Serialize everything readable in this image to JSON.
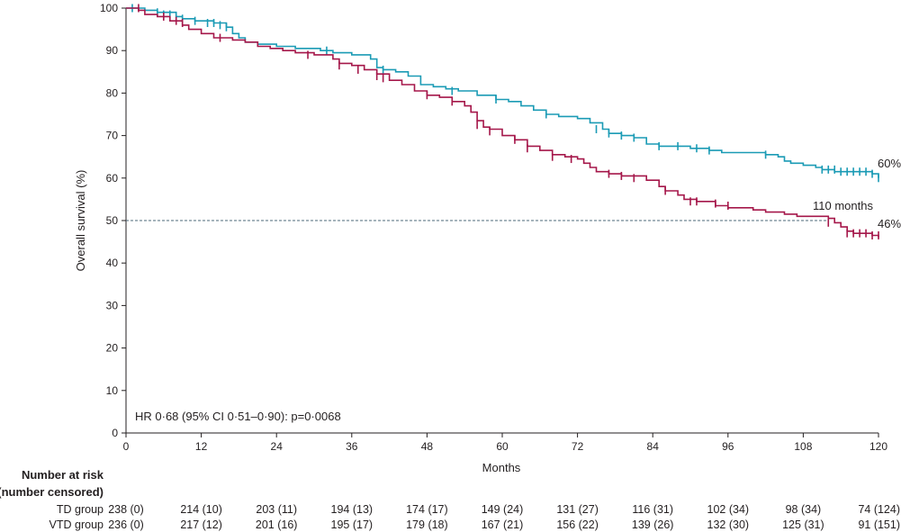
{
  "chart_data": {
    "type": "line",
    "title": "",
    "xlabel": "Months",
    "ylabel": "Overall survival (%)",
    "xlim": [
      0,
      120
    ],
    "ylim": [
      0,
      100
    ],
    "x_ticks": [
      0,
      12,
      24,
      36,
      48,
      60,
      72,
      84,
      96,
      108,
      120
    ],
    "y_ticks": [
      0,
      10,
      20,
      30,
      40,
      50,
      60,
      70,
      80,
      90,
      100
    ],
    "grid": false,
    "colors": {
      "series_blue": "#1b9bb5",
      "series_red": "#a5174a",
      "reference": "#4d6a78"
    },
    "series": [
      {
        "key": "blue",
        "color": "#1b9bb5",
        "points": [
          [
            0,
            100
          ],
          [
            1,
            100
          ],
          [
            3,
            99.5
          ],
          [
            5,
            99
          ],
          [
            8,
            98
          ],
          [
            9,
            97.5
          ],
          [
            11,
            97
          ],
          [
            14,
            96.5
          ],
          [
            16,
            95.5
          ],
          [
            17,
            94
          ],
          [
            18,
            93
          ],
          [
            19,
            92
          ],
          [
            21,
            91.5
          ],
          [
            24,
            91
          ],
          [
            27,
            90.5
          ],
          [
            31,
            90
          ],
          [
            33,
            89.5
          ],
          [
            36,
            89
          ],
          [
            38,
            89
          ],
          [
            39,
            88
          ],
          [
            40,
            86
          ],
          [
            41,
            85.5
          ],
          [
            43,
            85
          ],
          [
            45,
            84
          ],
          [
            47,
            82
          ],
          [
            49,
            81.5
          ],
          [
            51,
            81
          ],
          [
            53,
            80.5
          ],
          [
            56,
            79.5
          ],
          [
            59,
            78.5
          ],
          [
            61,
            78
          ],
          [
            63,
            77
          ],
          [
            65,
            76
          ],
          [
            67,
            75
          ],
          [
            69,
            74.5
          ],
          [
            72,
            74
          ],
          [
            74,
            73
          ],
          [
            76,
            71.5
          ],
          [
            77,
            70.5
          ],
          [
            79,
            70
          ],
          [
            81,
            69.5
          ],
          [
            83,
            68
          ],
          [
            85,
            67.5
          ],
          [
            88,
            67.5
          ],
          [
            90,
            67
          ],
          [
            93,
            66.5
          ],
          [
            95,
            66
          ],
          [
            102,
            65.5
          ],
          [
            104,
            65
          ],
          [
            105,
            64
          ],
          [
            106,
            63.5
          ],
          [
            108,
            63
          ],
          [
            110,
            62.5
          ],
          [
            111,
            62
          ],
          [
            113,
            61.5
          ],
          [
            119,
            61
          ],
          [
            120,
            60
          ]
        ],
        "censors": [
          [
            1,
            100
          ],
          [
            5,
            99
          ],
          [
            6,
            98.5
          ],
          [
            7,
            98.5
          ],
          [
            8,
            98
          ],
          [
            9,
            97.5
          ],
          [
            11,
            97
          ],
          [
            13,
            96.5
          ],
          [
            14,
            96.5
          ],
          [
            15,
            96
          ],
          [
            16,
            95.5
          ],
          [
            32,
            90
          ],
          [
            41,
            85.5
          ],
          [
            52,
            80.5
          ],
          [
            59,
            78.5
          ],
          [
            67,
            75
          ],
          [
            75,
            71.5
          ],
          [
            77,
            70.5
          ],
          [
            79,
            70
          ],
          [
            81,
            69.5
          ],
          [
            85,
            67.5
          ],
          [
            88,
            67.5
          ],
          [
            91,
            67
          ],
          [
            93,
            66.5
          ],
          [
            102,
            65.5
          ],
          [
            111,
            62
          ],
          [
            112,
            62
          ],
          [
            113,
            62
          ],
          [
            114,
            61.5
          ],
          [
            115,
            61.5
          ],
          [
            116,
            61.5
          ],
          [
            117,
            61.5
          ],
          [
            118,
            61.5
          ],
          [
            119,
            61
          ],
          [
            120,
            60
          ]
        ]
      },
      {
        "key": "red",
        "color": "#a5174a",
        "points": [
          [
            0,
            100
          ],
          [
            2,
            99.5
          ],
          [
            3,
            98.5
          ],
          [
            5,
            98
          ],
          [
            7,
            97
          ],
          [
            9,
            96
          ],
          [
            10,
            95
          ],
          [
            12,
            94
          ],
          [
            14,
            93
          ],
          [
            17,
            92.5
          ],
          [
            19,
            92
          ],
          [
            21,
            91
          ],
          [
            23,
            90.5
          ],
          [
            25,
            90
          ],
          [
            27,
            89.5
          ],
          [
            30,
            89
          ],
          [
            33,
            88
          ],
          [
            34,
            87
          ],
          [
            36,
            86.5
          ],
          [
            38,
            85.5
          ],
          [
            40,
            84.5
          ],
          [
            42,
            83
          ],
          [
            44,
            82
          ],
          [
            46,
            80.5
          ],
          [
            48,
            79.5
          ],
          [
            50,
            79
          ],
          [
            52,
            78
          ],
          [
            54,
            77
          ],
          [
            55,
            75.5
          ],
          [
            56,
            73.5
          ],
          [
            57,
            72
          ],
          [
            58,
            71.5
          ],
          [
            60,
            70
          ],
          [
            62,
            69
          ],
          [
            64,
            67.5
          ],
          [
            66,
            66.5
          ],
          [
            68,
            65.5
          ],
          [
            70,
            65
          ],
          [
            72,
            64.5
          ],
          [
            73,
            63.5
          ],
          [
            74,
            62.5
          ],
          [
            75,
            61.5
          ],
          [
            77,
            61
          ],
          [
            79,
            60.5
          ],
          [
            83,
            59.5
          ],
          [
            85,
            58
          ],
          [
            86,
            57
          ],
          [
            88,
            56
          ],
          [
            89,
            55
          ],
          [
            91,
            54.5
          ],
          [
            94,
            53.5
          ],
          [
            96,
            53
          ],
          [
            100,
            52.5
          ],
          [
            102,
            52
          ],
          [
            105,
            51.5
          ],
          [
            107,
            51
          ],
          [
            112,
            50.5
          ],
          [
            113,
            49.5
          ],
          [
            114,
            48.5
          ],
          [
            115,
            47.5
          ],
          [
            116,
            47
          ],
          [
            119,
            46.5
          ],
          [
            120,
            46
          ]
        ],
        "censors": [
          [
            2,
            100
          ],
          [
            6,
            98
          ],
          [
            8,
            97
          ],
          [
            9,
            96.5
          ],
          [
            15,
            93
          ],
          [
            29,
            89
          ],
          [
            34,
            86.5
          ],
          [
            37,
            85.5
          ],
          [
            40,
            84
          ],
          [
            41,
            83.5
          ],
          [
            48,
            79.5
          ],
          [
            52,
            78
          ],
          [
            56,
            72.5
          ],
          [
            58,
            71
          ],
          [
            62,
            69
          ],
          [
            64,
            67
          ],
          [
            68,
            65
          ],
          [
            71,
            64.5
          ],
          [
            77,
            61
          ],
          [
            79,
            60.5
          ],
          [
            81,
            60
          ],
          [
            86,
            57
          ],
          [
            90,
            54.5
          ],
          [
            91,
            54.5
          ],
          [
            94,
            54
          ],
          [
            96,
            53.5
          ],
          [
            112,
            49.5
          ],
          [
            115,
            47
          ],
          [
            116,
            47
          ],
          [
            117,
            47
          ],
          [
            118,
            47
          ],
          [
            119,
            46.5
          ],
          [
            120,
            46.5
          ]
        ]
      }
    ],
    "reference_line": {
      "y": 50,
      "x_end": 112,
      "label": "110 months"
    },
    "end_labels": [
      {
        "series": "blue",
        "text": "60%",
        "y": 60
      },
      {
        "series": "red",
        "text": "46%",
        "y": 46
      }
    ],
    "annotation": "HR 0·68 (95% CI 0·51–0·90): p=0·0068"
  },
  "risk_table": {
    "header_line1": "Number at risk",
    "header_line2": "(number censored)",
    "rows": [
      {
        "group": "TD group",
        "values": [
          "238 (0)",
          "214 (10)",
          "203 (11)",
          "194 (13)",
          "174 (17)",
          "149 (24)",
          "131 (27)",
          "116 (31)",
          "102 (34)",
          "98 (34)",
          "74 (124)"
        ]
      },
      {
        "group": "VTD group",
        "values": [
          "236 (0)",
          "217 (12)",
          "201 (16)",
          "195 (17)",
          "179 (18)",
          "167 (21)",
          "156 (22)",
          "139 (26)",
          "132 (30)",
          "125 (31)",
          "91 (151)"
        ]
      }
    ]
  }
}
